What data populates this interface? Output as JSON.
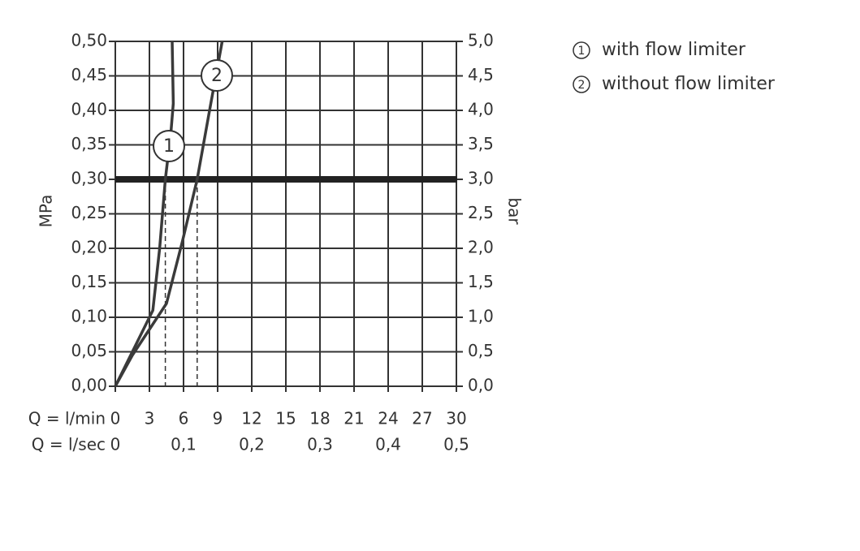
{
  "chart_data": {
    "type": "line",
    "xlabel": "Q = l/min",
    "x2label": "Q = l/sec",
    "ylabel": "MPa",
    "y2label": "bar",
    "xlim": [
      0,
      30
    ],
    "xticks": [
      0,
      3,
      6,
      9,
      12,
      15,
      18,
      21,
      24,
      27,
      30
    ],
    "x2lim": [
      0,
      0.5
    ],
    "x2ticks": [
      0,
      {
        "value": 0.1,
        "label": "0,1"
      },
      {
        "value": 0.2,
        "label": "0,2"
      },
      {
        "value": 0.3,
        "label": "0,3"
      },
      {
        "value": 0.4,
        "label": "0,4"
      },
      {
        "value": 0.5,
        "label": "0,5"
      }
    ],
    "ylim": [
      0,
      0.5
    ],
    "yticks": [
      {
        "value": 0,
        "label": "0,00"
      },
      {
        "value": 0.05,
        "label": "0,05"
      },
      {
        "value": 0.1,
        "label": "0,10"
      },
      {
        "value": 0.15,
        "label": "0,15"
      },
      {
        "value": 0.2,
        "label": "0,20"
      },
      {
        "value": 0.25,
        "label": "0,25"
      },
      {
        "value": 0.3,
        "label": "0,30"
      },
      {
        "value": 0.35,
        "label": "0,35"
      },
      {
        "value": 0.4,
        "label": "0,40"
      },
      {
        "value": 0.45,
        "label": "0,45"
      },
      {
        "value": 0.5,
        "label": "0,50"
      }
    ],
    "y2lim": [
      0,
      5
    ],
    "y2ticks": [
      {
        "value": 0,
        "label": "0,0"
      },
      {
        "value": 0.5,
        "label": "0,5"
      },
      {
        "value": 1,
        "label": "1,0"
      },
      {
        "value": 1.5,
        "label": "1,5"
      },
      {
        "value": 2,
        "label": "2,0"
      },
      {
        "value": 2.5,
        "label": "2,5"
      },
      {
        "value": 3,
        "label": "3,0"
      },
      {
        "value": 3.5,
        "label": "3,5"
      },
      {
        "value": 4,
        "label": "4,0"
      },
      {
        "value": 4.5,
        "label": "4,5"
      },
      {
        "value": 5,
        "label": "5,0"
      }
    ],
    "grid": true,
    "operating_pressure": 0.3,
    "operating_flows": [
      4.4,
      7.2
    ],
    "series": [
      {
        "name": "with flow limiter",
        "label": "1",
        "color": "#3a3a3a",
        "x": [
          0,
          1.5,
          3.3,
          3.9,
          4.4,
          4.9,
          5.1,
          5.0
        ],
        "y": [
          0,
          0.05,
          0.11,
          0.2,
          0.3,
          0.37,
          0.41,
          0.5
        ]
      },
      {
        "name": "without flow limiter",
        "label": "2",
        "color": "#3a3a3a",
        "x": [
          0,
          1.5,
          3.3,
          4.5,
          5.9,
          7.2,
          8.4,
          9.4
        ],
        "y": [
          0,
          0.045,
          0.09,
          0.12,
          0.21,
          0.3,
          0.41,
          0.5
        ]
      }
    ]
  }
}
